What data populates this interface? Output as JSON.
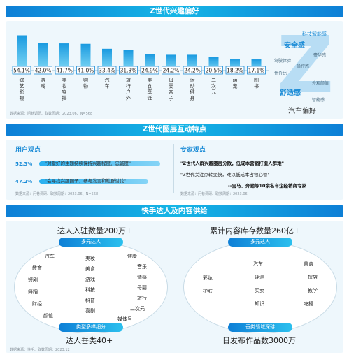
{
  "sections": {
    "s1_title": "Z世代兴趣偏好",
    "s2_title": "Z世代圈层互动特点",
    "s3_title": "快手达人及内容供给"
  },
  "chart_data": {
    "type": "bar",
    "categories": [
      "综艺影视",
      "游戏",
      "美妆穿搭",
      "购物",
      "汽车",
      "旅行户外",
      "美食享饪",
      "母婴亲子",
      "运动健身",
      "二次元",
      "萌宠",
      "图书"
    ],
    "values": [
      54.1,
      42.0,
      41.7,
      41.0,
      33.4,
      31.3,
      24.9,
      24.2,
      24.2,
      20.5,
      18.2,
      17.1
    ],
    "value_labels": [
      "54.1%",
      "42.0%",
      "41.7%",
      "41.0%",
      "33.4%",
      "31.3%",
      "24.9%",
      "24.2%",
      "24.2%",
      "20.5%",
      "18.2%",
      "17.1%"
    ],
    "ylim": [
      0,
      60
    ],
    "source": "数据来源：问巷调研、取数周期：2023.06、N=568"
  },
  "wordcloud": {
    "caption": "汽车偏好",
    "words": [
      "安全感",
      "科技智能感",
      "舒适感",
      "豪华感",
      "性价比",
      "操控感",
      "外观颜值",
      "智能感",
      "驾驶体验"
    ]
  },
  "interaction": {
    "left_title": "用户观点",
    "items": [
      {
        "pct": "52.3%",
        "fill": 0.523,
        "text": "\"对爱好的主题持续保持兴趣程度、忠诚度\""
      },
      {
        "pct": "47.2%",
        "fill": 0.472,
        "text": "\"会寻找兴趣圈子，参与发言和社群讨论\""
      }
    ],
    "left_source": "数据来源：问巷调研、取数周期：2023.06、N=568",
    "right_title": "专家观点",
    "quote1": "\"Z世代人群兴趣圈层分散，低成本营销打造人群难\"",
    "quote2": "\"Z世代关注点转变快，难以低成本占领心智\"",
    "attribution": "--宝马、奔驰等10余名车企经销商专家",
    "right_source": "数据来源：问巷调研、取数周期：2023.06"
  },
  "supply": {
    "left_headline": "达人入驻数量200万+",
    "left_pill": "多元达人",
    "left_words": [
      "汽车",
      "教育",
      "短剧",
      "舞蹈",
      "财经",
      "颜值",
      "美妆",
      "美食",
      "游戏",
      "科技",
      "科普",
      "喜剧",
      "健康",
      "音乐",
      "情感",
      "母婴",
      "旅行",
      "二次元",
      "媒体号"
    ],
    "left_bottom_pill": "类型多样细分",
    "left_footer": "达人垂类40+",
    "right_headline": "累计内容库存数量260亿+",
    "right_pill": "多元达人",
    "right_words": [
      "彩妆",
      "护肤",
      "汽车",
      "评测",
      "买卖",
      "知识",
      "美食",
      "探店",
      "教学",
      "吃播"
    ],
    "right_bottom_pill": "垂类领域深耕",
    "right_footer": "日发布作品数3000万",
    "source": "数据来源：快手、取数周期：2023.12"
  }
}
